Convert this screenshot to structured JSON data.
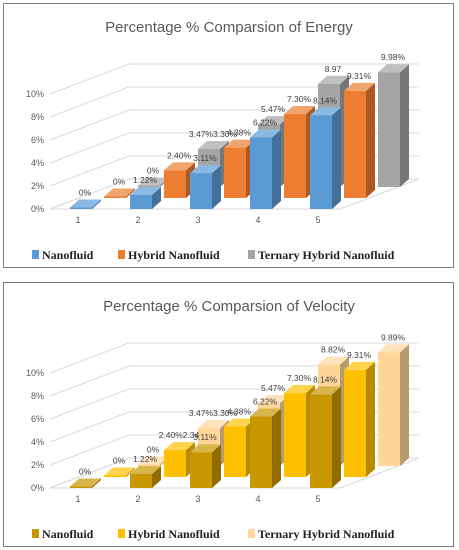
{
  "chart_data": [
    {
      "type": "bar",
      "title": "Percentage % Comparsion of Energy",
      "categories": [
        "1",
        "2",
        "3",
        "4",
        "5"
      ],
      "yticks": [
        "0%",
        "2%",
        "4%",
        "6%",
        "8%",
        "10%"
      ],
      "ylim": [
        0,
        10
      ],
      "grid": true,
      "legend_position": "bottom",
      "series": [
        {
          "name": "Nanofluid",
          "values": [
            0,
            1.22,
            3.11,
            6.22,
            8.14
          ],
          "labels": [
            "0%",
            "1.22%",
            "3.11%",
            "6.22%",
            "8.14%"
          ],
          "color": "#5b9bd5"
        },
        {
          "name": "Hybrid Nanofluid",
          "values": [
            0,
            2.4,
            4.38,
            7.3,
            9.31
          ],
          "labels": [
            "0%",
            "2.40%",
            "4.38%",
            "7.30%",
            "9.31%"
          ],
          "color": "#ed7d31"
        },
        {
          "name": "Ternary Hybrid Nanofluid",
          "values": [
            0,
            3.3,
            5.47,
            8.97,
            9.98
          ],
          "labels": [
            "0%",
            "3.47%3.30%",
            "5.47%",
            "8.97",
            "9.98%"
          ],
          "color": "#a5a5a5"
        }
      ]
    },
    {
      "type": "bar",
      "title": "Percentage % Comparsion of Velocity",
      "categories": [
        "1",
        "2",
        "3",
        "4",
        "5"
      ],
      "yticks": [
        "0%",
        "2%",
        "4%",
        "6%",
        "8%",
        "10%"
      ],
      "ylim": [
        0,
        10
      ],
      "grid": true,
      "legend_position": "bottom",
      "series": [
        {
          "name": "Nanofluid",
          "values": [
            0,
            1.22,
            3.11,
            6.22,
            8.14
          ],
          "labels": [
            "0%",
            "1.22%",
            "3.11%",
            "6.22%",
            "8.14%"
          ],
          "color": "#c99700"
        },
        {
          "name": "Hybrid Nanofluid",
          "values": [
            0,
            2.34,
            4.38,
            7.3,
            9.31
          ],
          "labels": [
            "0%",
            "2.40%2.34",
            "4.38%",
            "7.30%",
            "9.31%"
          ],
          "color": "#ffc000"
        },
        {
          "name": "Ternary Hybrid Nanofluid",
          "values": [
            0,
            3.3,
            5.47,
            8.82,
            9.89
          ],
          "labels": [
            "0%",
            "3.47%3.30%",
            "5.47%",
            "8.82%",
            "9.89%"
          ],
          "color": "#ffd69a"
        }
      ]
    }
  ]
}
